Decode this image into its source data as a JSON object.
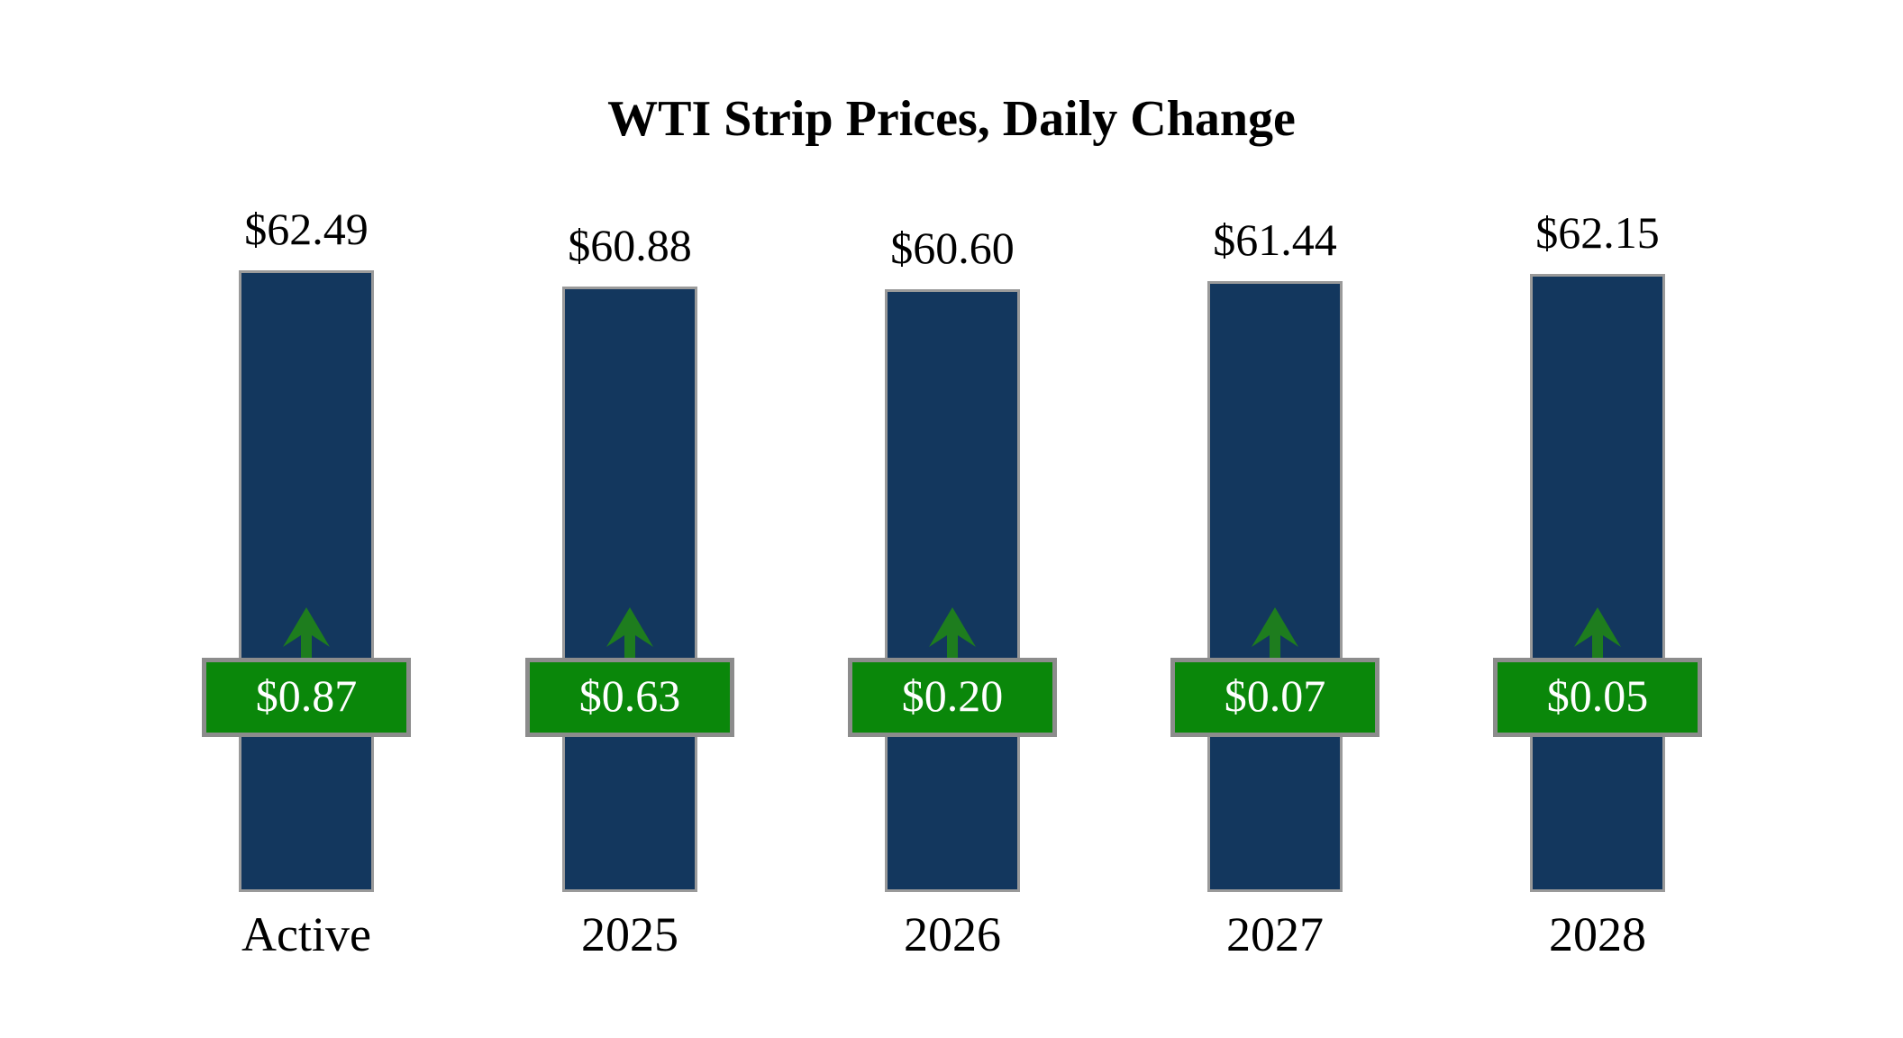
{
  "title": "WTI Strip Prices, Daily Change",
  "chart_data": {
    "type": "bar",
    "title": "WTI Strip Prices, Daily Change",
    "categories": [
      "Active",
      "2025",
      "2026",
      "2027",
      "2028"
    ],
    "series": [
      {
        "name": "Strip Price",
        "values": [
          62.49,
          60.88,
          60.6,
          61.44,
          62.15
        ]
      },
      {
        "name": "Daily Change",
        "values": [
          0.87,
          0.63,
          0.2,
          0.07,
          0.05
        ]
      }
    ],
    "price_labels": [
      "$62.49",
      "$60.88",
      "$60.60",
      "$61.44",
      "$62.15"
    ],
    "change_labels": [
      "$0.87",
      "$0.63",
      "$0.20",
      "$0.07",
      "$0.05"
    ],
    "change_direction": "up",
    "xlabel": "",
    "ylabel": "",
    "ylim": [
      0,
      62.49
    ],
    "grid": false,
    "legend": false,
    "colors": {
      "bar_fill": "#13375E",
      "bar_border": "#9a9a9a",
      "badge_fill": "#0A870A",
      "badge_border": "#8c8c8c",
      "arrow": "#1E7D1E",
      "label_text": "#000000",
      "badge_text": "#ffffff",
      "background": "#ffffff"
    },
    "icons": {
      "change_icon": "arrow-up-icon"
    }
  }
}
